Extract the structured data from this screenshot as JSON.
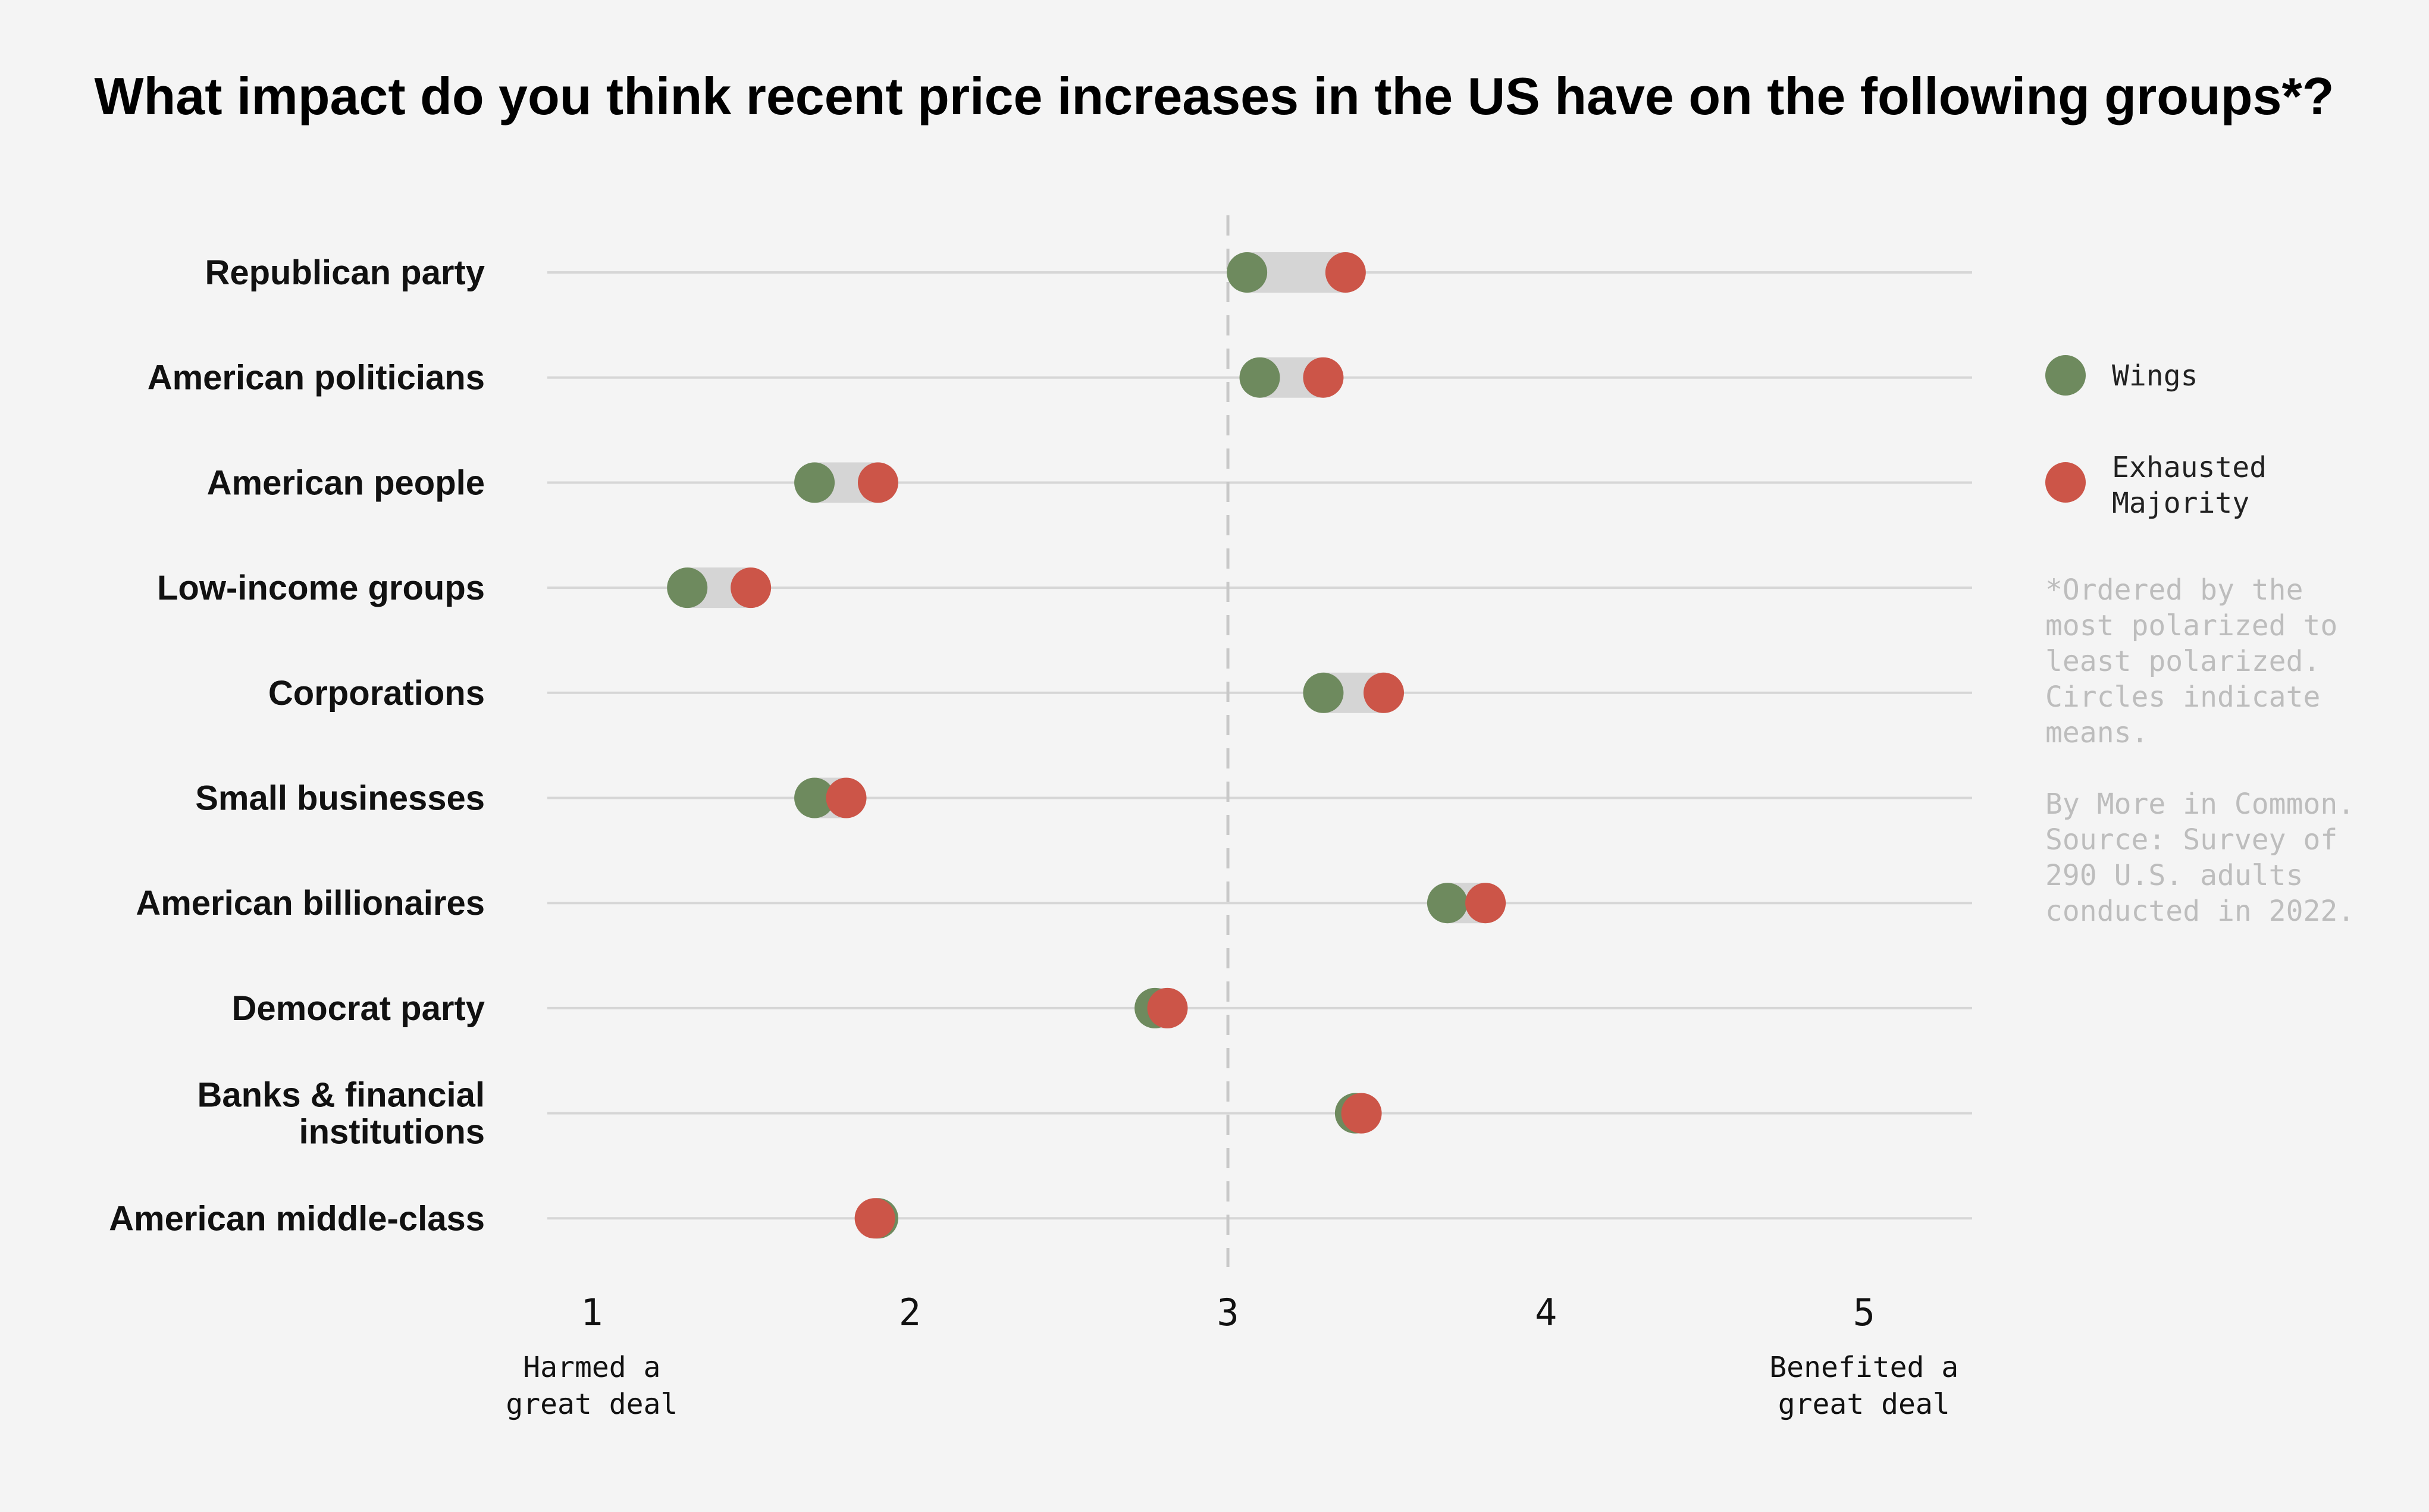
{
  "chart_data": {
    "type": "dot-plot",
    "title": "What impact do you think recent price increases in the US have on the following groups*?",
    "categories": [
      [
        "Republican party"
      ],
      [
        "American politicians"
      ],
      [
        "American people"
      ],
      [
        "Low-income groups"
      ],
      [
        "Corporations"
      ],
      [
        "Small businesses"
      ],
      [
        "American billionaires"
      ],
      [
        "Democrat party"
      ],
      [
        "Banks & financial",
        "institutions"
      ],
      [
        "American middle-class"
      ]
    ],
    "series": [
      {
        "name": "Wings",
        "color": "#6e8a5e",
        "values": [
          3.06,
          3.1,
          1.7,
          1.3,
          3.3,
          1.7,
          3.69,
          2.77,
          3.4,
          1.9
        ]
      },
      {
        "name": "Exhausted Majority",
        "color": "#cc5548",
        "values": [
          3.37,
          3.3,
          1.9,
          1.5,
          3.49,
          1.8,
          3.81,
          2.81,
          3.42,
          1.89
        ]
      }
    ],
    "xlim": [
      0.86,
      5.34
    ],
    "xticks": [
      "1",
      "2",
      "3",
      "4",
      "5"
    ],
    "reference_line": 3,
    "x_end_labels": {
      "left": [
        "Harmed a",
        "great deal"
      ],
      "right": [
        "Benefited a",
        "great deal"
      ]
    },
    "legend_position": "right",
    "grid": "horizontal lines per category",
    "note": [
      "*Ordered by the",
      "most polarized to",
      "least polarized.",
      "Circles indicate",
      "means."
    ],
    "source": [
      "By More in Common.",
      "Source: Survey of",
      "290 U.S. adults",
      "conducted in 2022."
    ]
  },
  "colors": {
    "background": "#f4f4f4",
    "gridline": "#d6d6d6",
    "range_bar": "#d5d5d5",
    "reference_line": "#c8c8c8",
    "muted_text": "#bdbdbd"
  }
}
